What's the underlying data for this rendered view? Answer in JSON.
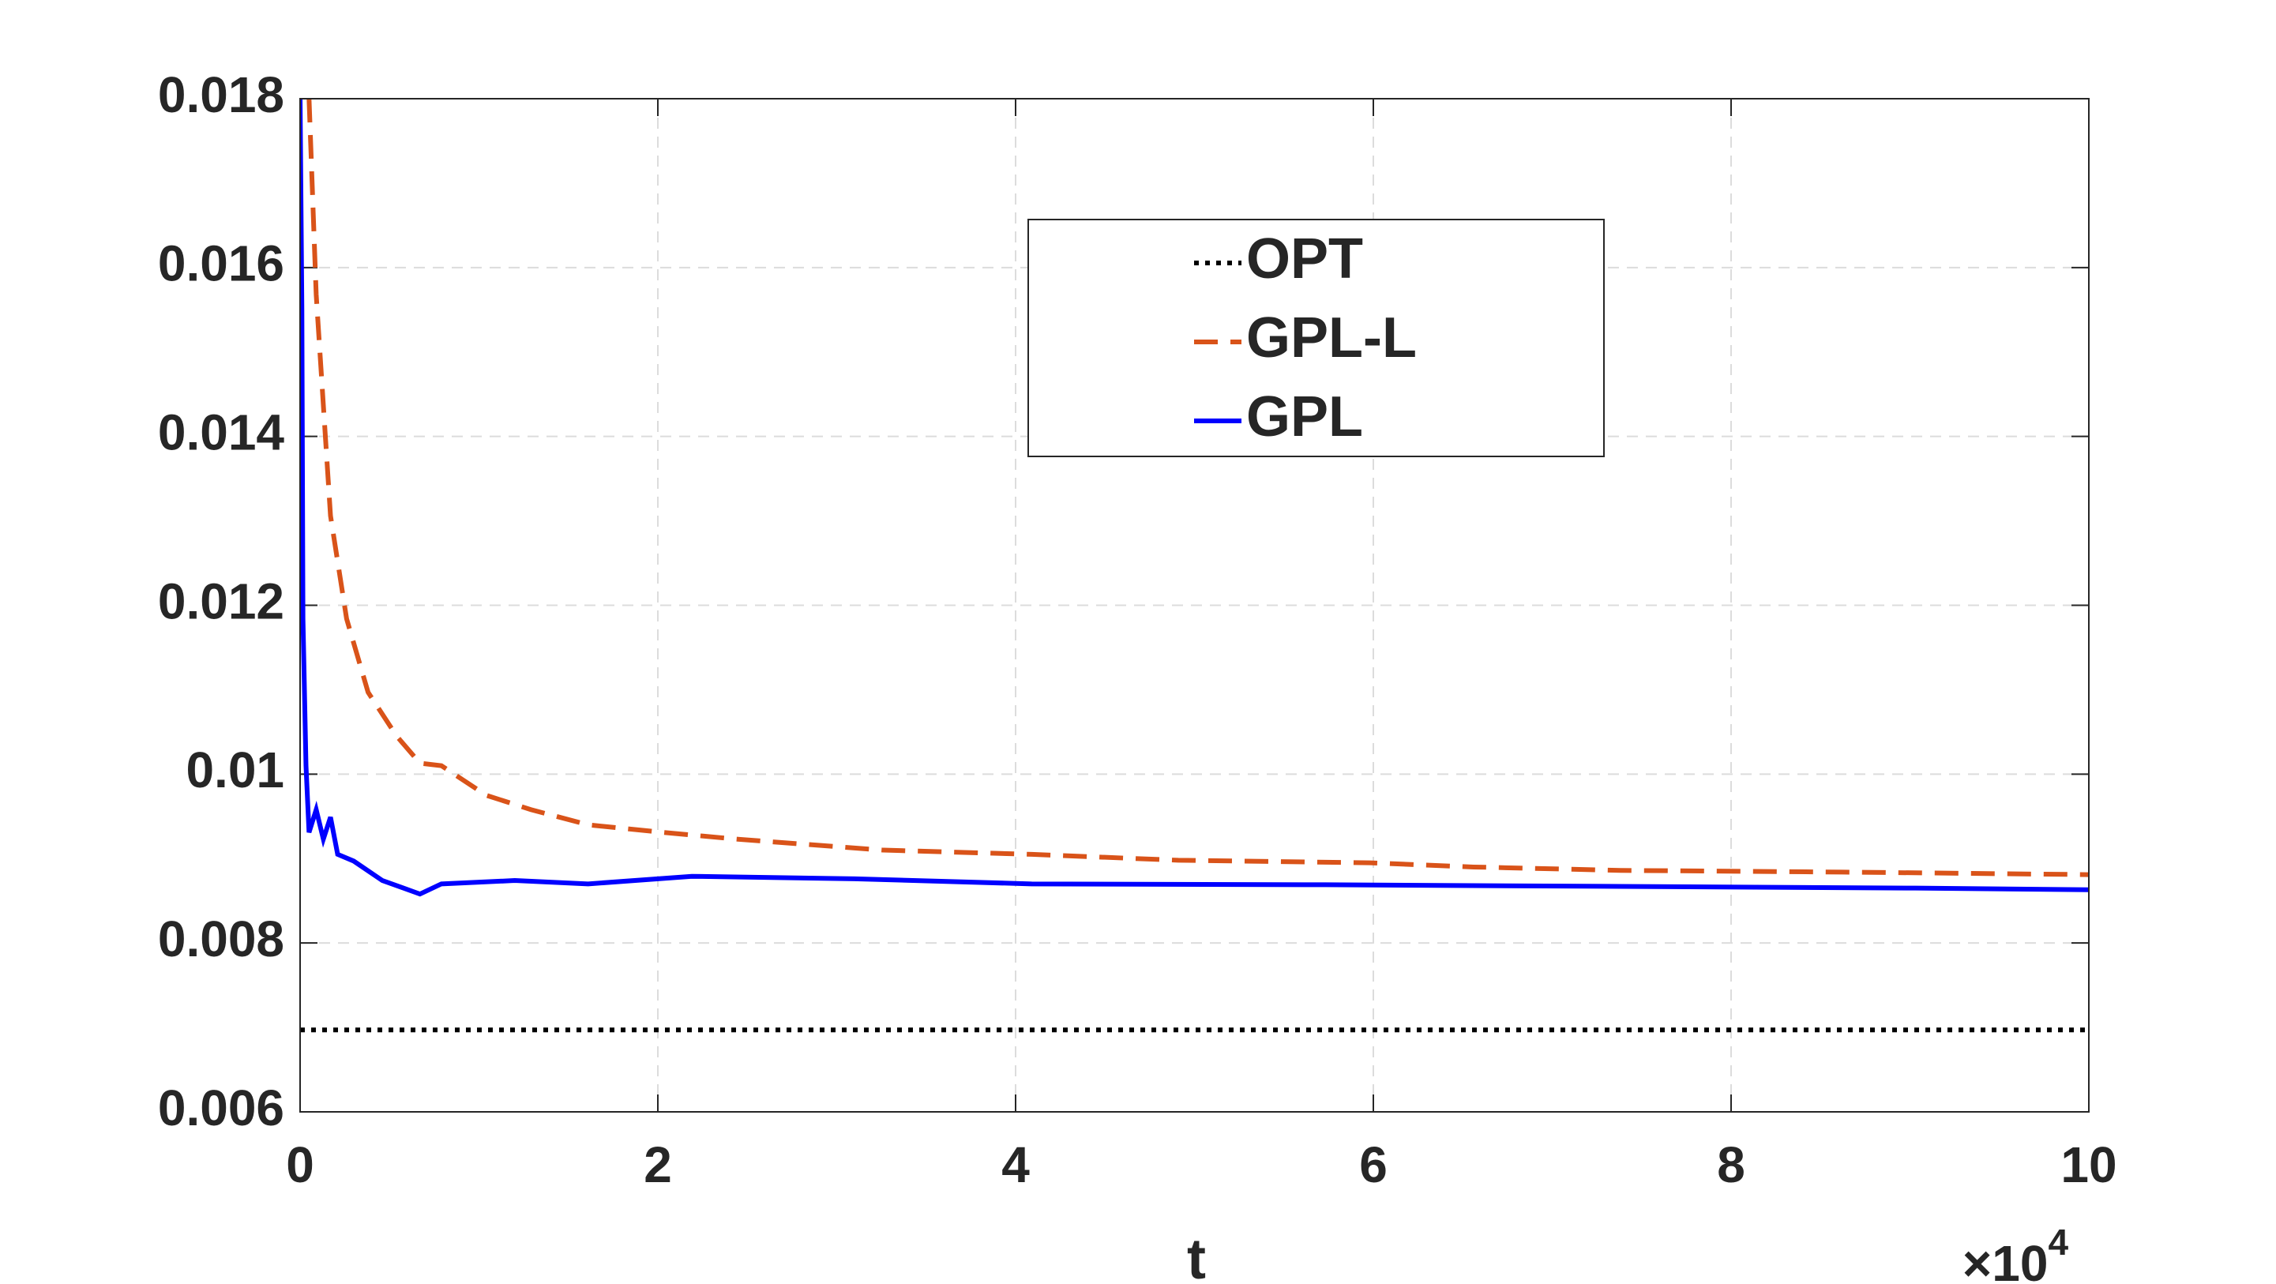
{
  "chart_data": {
    "type": "line",
    "x_label": "t",
    "x_multiplier": {
      "base": "×10",
      "exponent": "4"
    },
    "xlim": [
      0,
      10
    ],
    "xticks": [
      0,
      2,
      4,
      6,
      8,
      10
    ],
    "ylim": [
      0.006,
      0.018
    ],
    "yticks": [
      0.006,
      0.008,
      {
        "value": 0.01,
        "label": "0.01"
      },
      0.012,
      0.014,
      0.016,
      0.018
    ],
    "grid": true,
    "legend": "top-center",
    "series": [
      {
        "name": "OPT",
        "color": "#000000",
        "dash": "dotted",
        "x": [
          0,
          10
        ],
        "values": [
          0.00697,
          0.00697
        ]
      },
      {
        "name": "GPL-L",
        "color": "#d95319",
        "dash": "dashed",
        "x": [
          0.05,
          0.09,
          0.17,
          0.26,
          0.38,
          0.54,
          0.67,
          0.79,
          1.04,
          1.29,
          1.61,
          2.03,
          2.44,
          3.26,
          4.09,
          4.91,
          5.98,
          6.56,
          7.38,
          8.62,
          10
        ],
        "values": [
          0.018,
          0.01568,
          0.01306,
          0.01184,
          0.01097,
          0.01045,
          0.01013,
          0.0101,
          0.00975,
          0.00958,
          0.0094,
          0.00931,
          0.00923,
          0.0091,
          0.00905,
          0.00898,
          0.00895,
          0.0089,
          0.00886,
          0.00884,
          0.00881
        ]
      },
      {
        "name": "GPL",
        "color": "#0000ff",
        "dash": "solid",
        "x": [
          0,
          0.01,
          0.016,
          0.033,
          0.05,
          0.09,
          0.13,
          0.17,
          0.21,
          0.3,
          0.46,
          0.67,
          0.79,
          1.2,
          1.61,
          2.19,
          3.1,
          4.09,
          5.73,
          7.38,
          9.03,
          10
        ],
        "values": [
          0.018,
          0.0155,
          0.01184,
          0.0101,
          0.00931,
          0.00958,
          0.00923,
          0.00949,
          0.00905,
          0.00897,
          0.00874,
          0.00858,
          0.0087,
          0.00874,
          0.0087,
          0.00879,
          0.00876,
          0.0087,
          0.00869,
          0.00867,
          0.00865,
          0.00863
        ]
      }
    ]
  }
}
